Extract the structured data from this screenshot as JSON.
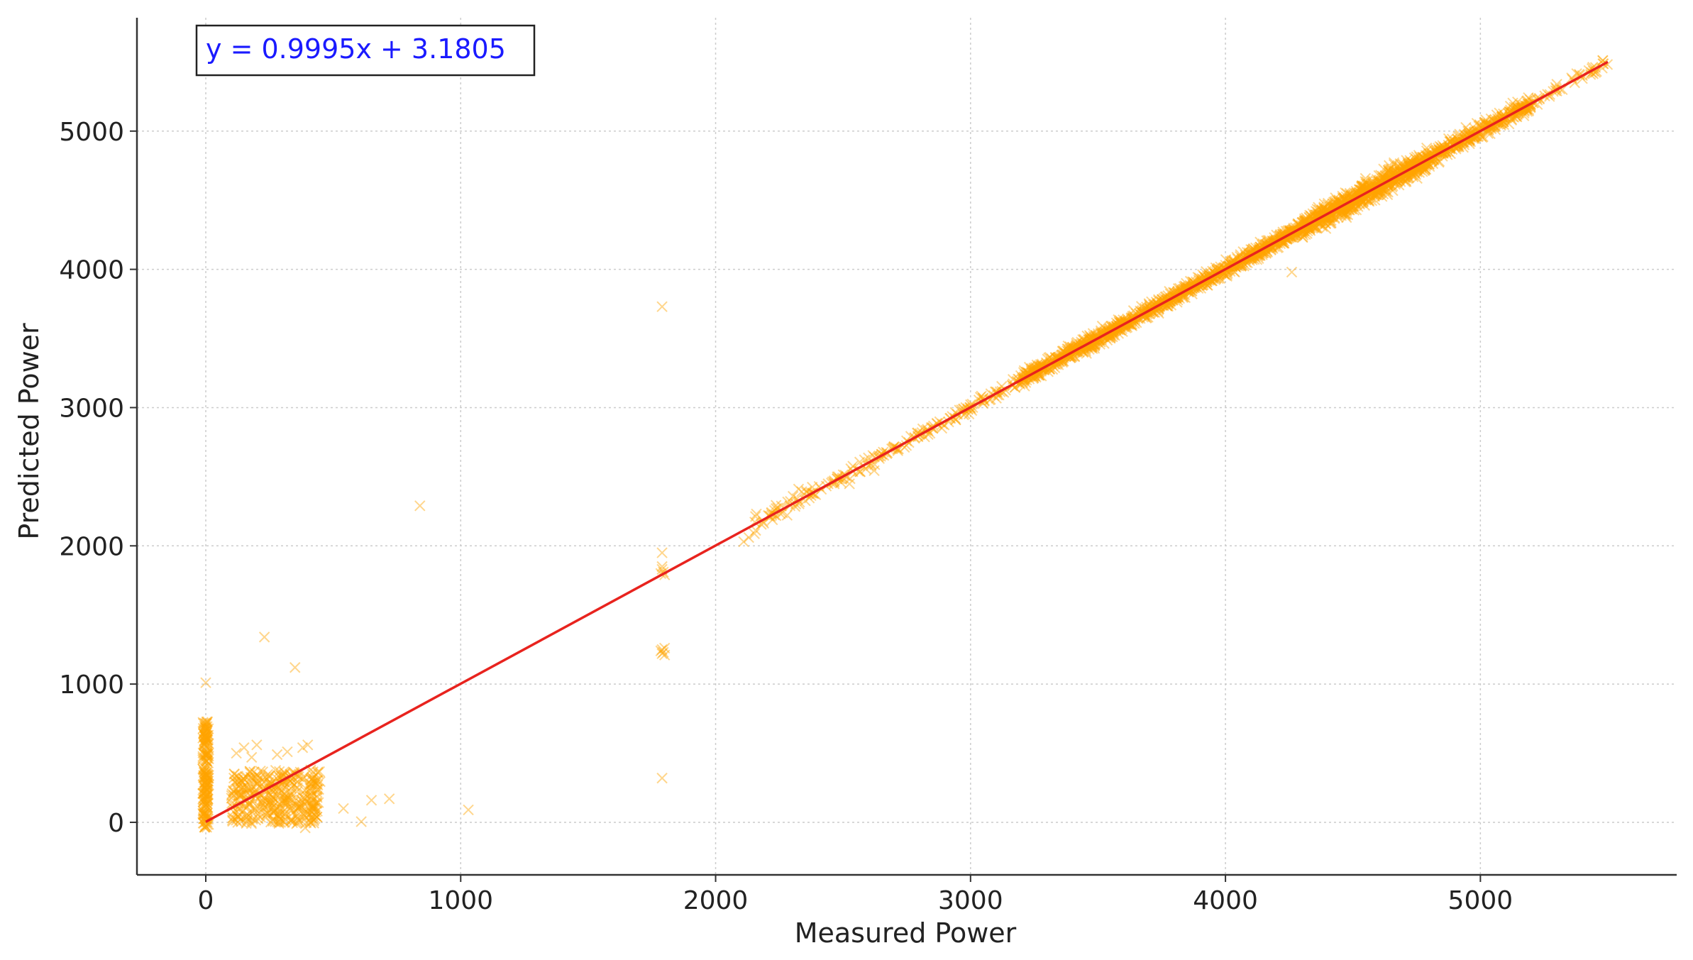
{
  "chart_data": {
    "type": "scatter",
    "title": "",
    "xlabel": "Measured Power",
    "ylabel": "Predicted Power",
    "xlim": [
      -270,
      5770
    ],
    "ylim": [
      -380,
      5820
    ],
    "x_ticks": [
      0,
      1000,
      2000,
      3000,
      4000,
      5000
    ],
    "y_ticks": [
      0,
      1000,
      2000,
      3000,
      4000,
      5000
    ],
    "x_tick_labels": [
      "0",
      "1000",
      "2000",
      "3000",
      "4000",
      "5000"
    ],
    "y_tick_labels": [
      "0",
      "1000",
      "2000",
      "3000",
      "4000",
      "5000"
    ],
    "grid": true,
    "colors": {
      "points": "#FFA500",
      "fit_line": "#E8231E",
      "equation_text": "#1A1AFF",
      "grid": "#cccccc",
      "axis": "#333333"
    },
    "annotation": {
      "text": "y = 0.9995x + 3.1805",
      "placement": "top-left"
    },
    "fit_line": {
      "slope": 0.9995,
      "intercept": 3.1805,
      "x_range": [
        0,
        5500
      ]
    },
    "series": [
      {
        "marker": "x",
        "points": [
          [
            1790,
            3730
          ],
          [
            840,
            2290
          ],
          [
            230,
            1340
          ],
          [
            350,
            1120
          ],
          [
            0,
            1010
          ],
          [
            1030,
            90
          ],
          [
            1790,
            320
          ],
          [
            610,
            5
          ],
          [
            650,
            160
          ],
          [
            720,
            170
          ],
          [
            540,
            100
          ],
          [
            1790,
            1830
          ],
          [
            1795,
            1810
          ],
          [
            1800,
            1790
          ],
          [
            1790,
            1850
          ],
          [
            1790,
            1950
          ],
          [
            1785,
            1800
          ],
          [
            1790,
            1250
          ],
          [
            1795,
            1230
          ],
          [
            1800,
            1210
          ],
          [
            1790,
            1220
          ],
          [
            1785,
            1240
          ],
          [
            1800,
            1260
          ],
          [
            4260,
            3980
          ],
          [
            2110,
            2030
          ],
          [
            2130,
            2060
          ],
          [
            2160,
            2230
          ],
          [
            280,
            490
          ],
          [
            320,
            510
          ],
          [
            200,
            560
          ],
          [
            400,
            560
          ],
          [
            380,
            540
          ],
          [
            180,
            470
          ],
          [
            150,
            540
          ],
          [
            120,
            500
          ],
          [
            410,
            0
          ],
          [
            390,
            -40
          ],
          [
            0,
            -30
          ],
          [
            5480,
            5510
          ],
          [
            5300,
            5290
          ],
          [
            5400,
            5380
          ]
        ],
        "clusters": [
          {
            "x_range": [
              -12,
              12
            ],
            "y_range": [
              -40,
              730
            ],
            "count": 200
          },
          {
            "x_range": [
              100,
              450
            ],
            "y_range": [
              -10,
              380
            ],
            "count": 380
          },
          {
            "x_range": [
              2150,
              2650
            ],
            "noise": 45,
            "count": 90
          },
          {
            "x_range": [
              2650,
              3200
            ],
            "noise": 28,
            "count": 110
          },
          {
            "x_range": [
              3200,
              4300
            ],
            "noise": 35,
            "count": 1100
          },
          {
            "x_range": [
              4300,
              4800
            ],
            "noise": 55,
            "count": 800
          },
          {
            "x_range": [
              4800,
              5200
            ],
            "noise": 40,
            "count": 330
          },
          {
            "x_range": [
              5200,
              5500
            ],
            "noise": 25,
            "count": 40
          }
        ]
      }
    ]
  }
}
